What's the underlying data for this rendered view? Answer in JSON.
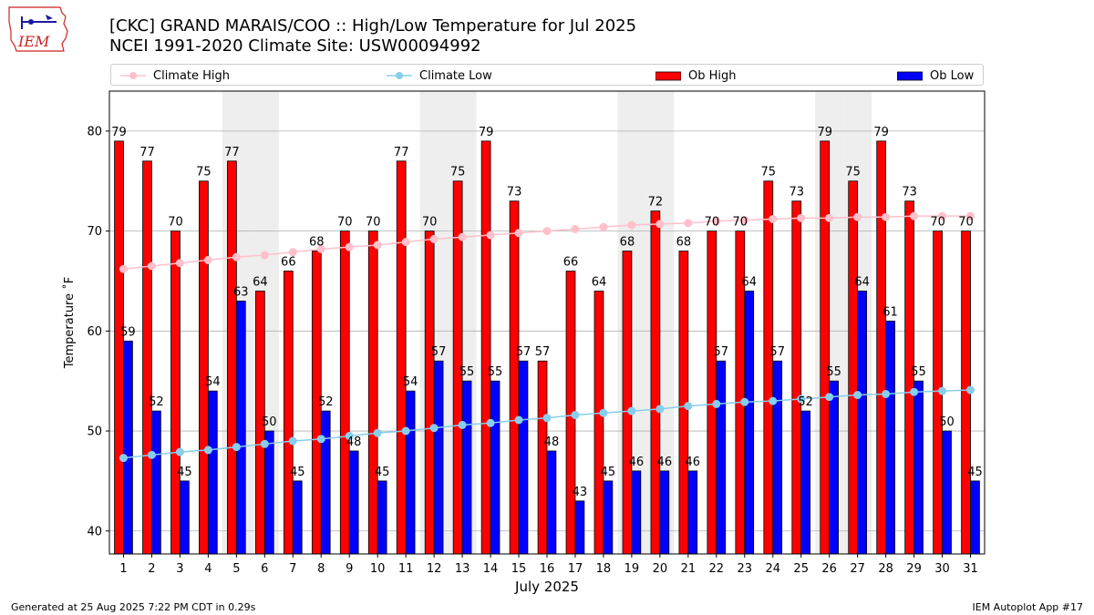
{
  "header": {
    "title_line1": "[CKC] GRAND MARAIS/COO :: High/Low Temperature for Jul 2025",
    "title_line2": "NCEI 1991-2020 Climate Site: USW00094992",
    "logo_text": "IEM"
  },
  "footer": {
    "left": "Generated at 25 Aug 2025 7:22 PM CDT in 0.29s",
    "right": "IEM Autoplot App #17"
  },
  "chart_data": {
    "type": "bar",
    "xlabel": "July 2025",
    "ylabel": "Temperature ˚F",
    "ylim": [
      37.7,
      84.0
    ],
    "yticks": [
      40,
      50,
      60,
      70,
      80
    ],
    "grid": "horizontal",
    "legend_position": "top",
    "categories": [
      "1",
      "2",
      "3",
      "4",
      "5",
      "6",
      "7",
      "8",
      "9",
      "10",
      "11",
      "12",
      "13",
      "14",
      "15",
      "16",
      "17",
      "18",
      "19",
      "20",
      "21",
      "22",
      "23",
      "24",
      "25",
      "26",
      "27",
      "28",
      "29",
      "30",
      "31"
    ],
    "shaded_weekend_days": [
      5,
      6,
      12,
      13,
      19,
      20,
      26,
      27
    ],
    "series": [
      {
        "name": "Climate High",
        "kind": "line",
        "color": "#ffc0cb",
        "values": [
          66.2,
          66.5,
          66.8,
          67.1,
          67.4,
          67.6,
          67.9,
          68.2,
          68.4,
          68.6,
          68.9,
          69.2,
          69.4,
          69.6,
          69.8,
          70.0,
          70.2,
          70.4,
          70.6,
          70.7,
          70.8,
          71.0,
          71.1,
          71.2,
          71.3,
          71.3,
          71.4,
          71.4,
          71.5,
          71.5,
          71.5
        ]
      },
      {
        "name": "Climate Low",
        "kind": "line",
        "color": "#87ceeb",
        "values": [
          47.3,
          47.6,
          47.9,
          48.1,
          48.4,
          48.7,
          49.0,
          49.2,
          49.5,
          49.8,
          50.0,
          50.3,
          50.6,
          50.8,
          51.1,
          51.3,
          51.6,
          51.8,
          52.0,
          52.2,
          52.5,
          52.7,
          52.9,
          53.0,
          53.2,
          53.4,
          53.6,
          53.7,
          53.9,
          54.0,
          54.1
        ]
      },
      {
        "name": "Ob High",
        "kind": "bar",
        "color": "#ff0000",
        "values": [
          79,
          77,
          70,
          75,
          77,
          64,
          66,
          68,
          70,
          70,
          77,
          70,
          75,
          79,
          73,
          57,
          66,
          64,
          68,
          72,
          68,
          70,
          70,
          75,
          73,
          79,
          75,
          79,
          73,
          70,
          70
        ]
      },
      {
        "name": "Ob Low",
        "kind": "bar",
        "color": "#0000ff",
        "values": [
          59,
          52,
          45,
          54,
          63,
          50,
          45,
          52,
          48,
          45,
          54,
          57,
          55,
          55,
          57,
          48,
          43,
          45,
          46,
          46,
          46,
          57,
          64,
          57,
          52,
          55,
          64,
          61,
          55,
          50,
          45
        ]
      }
    ]
  }
}
